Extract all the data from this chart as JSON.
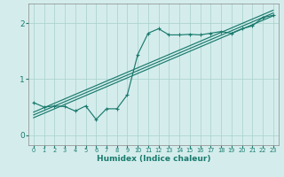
{
  "xlabel": "Humidex (Indice chaleur)",
  "bg_color": "#d4edec",
  "grid_color": "#aed4d0",
  "line_color": "#1a7a6e",
  "spine_color": "#888888",
  "xlim": [
    -0.5,
    23.5
  ],
  "ylim": [
    -0.18,
    2.35
  ],
  "yticks": [
    0,
    1,
    2
  ],
  "xticks": [
    0,
    1,
    2,
    3,
    4,
    5,
    6,
    7,
    8,
    9,
    10,
    11,
    12,
    13,
    14,
    15,
    16,
    17,
    18,
    19,
    20,
    21,
    22,
    23
  ],
  "scatter_x": [
    0,
    1,
    2,
    3,
    4,
    5,
    6,
    7,
    8,
    9,
    10,
    11,
    12,
    13,
    14,
    15,
    16,
    17,
    18,
    19,
    20,
    21,
    22,
    23
  ],
  "scatter_y": [
    0.58,
    0.5,
    0.52,
    0.51,
    0.43,
    0.52,
    0.28,
    0.47,
    0.47,
    0.72,
    1.44,
    1.82,
    1.9,
    1.79,
    1.79,
    1.8,
    1.79,
    1.82,
    1.85,
    1.82,
    1.9,
    1.95,
    2.1,
    2.14
  ],
  "reg_lines": [
    {
      "x0": 0,
      "x1": 23,
      "y0": 0.36,
      "y1": 2.18
    },
    {
      "x0": 0,
      "x1": 23,
      "y0": 0.41,
      "y1": 2.23
    },
    {
      "x0": 0,
      "x1": 23,
      "y0": 0.31,
      "y1": 2.13
    }
  ]
}
